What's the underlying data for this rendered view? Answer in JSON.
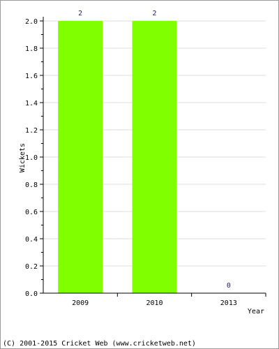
{
  "chart_data": {
    "type": "bar",
    "categories": [
      "2009",
      "2010",
      "2013"
    ],
    "values": [
      2,
      2,
      0
    ],
    "data_labels": [
      "2",
      "2",
      "0"
    ],
    "title": "",
    "xlabel": "Year",
    "ylabel": "Wickets",
    "ylim": [
      0,
      2.0
    ],
    "yticks": [
      "0.0",
      "0.2",
      "0.4",
      "0.6",
      "0.8",
      "1.0",
      "1.2",
      "1.4",
      "1.6",
      "1.8",
      "2.0"
    ],
    "grid": true,
    "legend": "none",
    "bar_color": "#80ff00",
    "grid_color": "#dddddd",
    "axis_color": "#000000"
  },
  "footer": {
    "copyright": "(C) 2001-2015 Cricket Web (www.cricketweb.net)"
  }
}
